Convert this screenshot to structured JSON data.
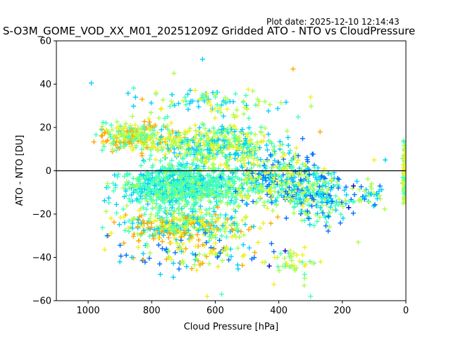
{
  "header": {
    "plot_date": "Plot date: 2025-12-10 12:14:43",
    "title": "S-O3M_GOME_VOD_XX_M01_20251209Z Gridded ATO - NTO vs CloudPressure"
  },
  "chart_data": {
    "type": "scatter",
    "title": "S-O3M_GOME_VOD_XX_M01_20251209Z Gridded ATO - NTO vs CloudPressure",
    "xlabel": "Cloud Pressure [hPa]",
    "ylabel": "ATO - NTO [DU]",
    "xlim": [
      1100,
      0
    ],
    "ylim": [
      -60,
      60
    ],
    "x_ticks": [
      1000,
      800,
      600,
      400,
      200,
      0
    ],
    "y_ticks": [
      60,
      40,
      20,
      0,
      -20,
      -40,
      -60
    ],
    "x_tick_labels": [
      "1000",
      "800",
      "600",
      "400",
      "200",
      "0"
    ],
    "y_tick_labels": [
      "60",
      "40",
      "20",
      "0",
      "−20",
      "−40",
      "−60"
    ],
    "grid": false,
    "legend": "none",
    "marker": "plus",
    "reference_line": {
      "y": 0,
      "color": "#000000"
    },
    "colormap": [
      "#0000cc",
      "#0070ff",
      "#00d0ff",
      "#44ffbb",
      "#a8ff4c",
      "#f0f020",
      "#ffa800"
    ],
    "density_clusters": [
      {
        "x_center": 700,
        "y_center": -7,
        "x_spread": 170,
        "y_spread": 9,
        "count": 900,
        "colors": [
          3,
          3,
          3,
          2,
          4
        ]
      },
      {
        "x_center": 850,
        "y_center": 16,
        "x_spread": 100,
        "y_spread": 6,
        "count": 260,
        "colors": [
          5,
          4,
          6,
          3
        ]
      },
      {
        "x_center": 600,
        "y_center": 12,
        "x_spread": 170,
        "y_spread": 8,
        "count": 420,
        "colors": [
          4,
          5,
          3,
          2
        ]
      },
      {
        "x_center": 700,
        "y_center": -25,
        "x_spread": 180,
        "y_spread": 6,
        "count": 380,
        "colors": [
          5,
          4,
          3,
          2,
          6
        ]
      },
      {
        "x_center": 400,
        "y_center": -5,
        "x_spread": 140,
        "y_spread": 12,
        "count": 380,
        "colors": [
          3,
          2,
          4,
          1,
          5
        ]
      },
      {
        "x_center": 270,
        "y_center": -12,
        "x_spread": 90,
        "y_spread": 11,
        "count": 160,
        "colors": [
          2,
          3,
          1,
          4
        ]
      },
      {
        "x_center": 650,
        "y_center": -38,
        "x_spread": 200,
        "y_spread": 7,
        "count": 120,
        "colors": [
          5,
          6,
          4,
          1,
          2
        ]
      },
      {
        "x_center": 600,
        "y_center": 32,
        "x_spread": 220,
        "y_spread": 6,
        "count": 100,
        "colors": [
          2,
          4,
          5,
          3
        ]
      },
      {
        "x_center": 5,
        "y_center": -2,
        "x_spread": 4,
        "y_spread": 14,
        "count": 90,
        "colors": [
          3,
          4,
          5
        ]
      },
      {
        "x_center": 120,
        "y_center": -10,
        "x_spread": 50,
        "y_spread": 7,
        "count": 40,
        "colors": [
          2,
          1,
          4
        ]
      },
      {
        "x_center": 350,
        "y_center": -42,
        "x_spread": 80,
        "y_spread": 6,
        "count": 40,
        "colors": [
          5,
          4,
          3
        ]
      }
    ],
    "outlier_points": [
      {
        "x": 640,
        "y": 51.5,
        "color": 2
      },
      {
        "x": 990,
        "y": 40.5,
        "color": 2
      },
      {
        "x": 355,
        "y": 47,
        "color": 6
      },
      {
        "x": 625,
        "y": -58,
        "color": 5
      },
      {
        "x": 580,
        "y": -57,
        "color": 3
      },
      {
        "x": 830,
        "y": 33,
        "color": 6
      },
      {
        "x": 730,
        "y": 45,
        "color": 4
      },
      {
        "x": 300,
        "y": -58,
        "color": 3
      },
      {
        "x": 430,
        "y": -44,
        "color": 0
      },
      {
        "x": 380,
        "y": -37,
        "color": 0
      },
      {
        "x": 180,
        "y": -17,
        "color": 0
      },
      {
        "x": 940,
        "y": -30,
        "color": 1
      },
      {
        "x": 880,
        "y": -39,
        "color": 1
      },
      {
        "x": 165,
        "y": -7,
        "color": 0
      },
      {
        "x": 100,
        "y": 5,
        "color": 5
      },
      {
        "x": 65,
        "y": 5,
        "color": 2
      },
      {
        "x": 300,
        "y": 34,
        "color": 5
      },
      {
        "x": 320,
        "y": -53,
        "color": 4
      },
      {
        "x": 270,
        "y": 18,
        "color": 6
      },
      {
        "x": 150,
        "y": -33,
        "color": 4
      }
    ]
  }
}
